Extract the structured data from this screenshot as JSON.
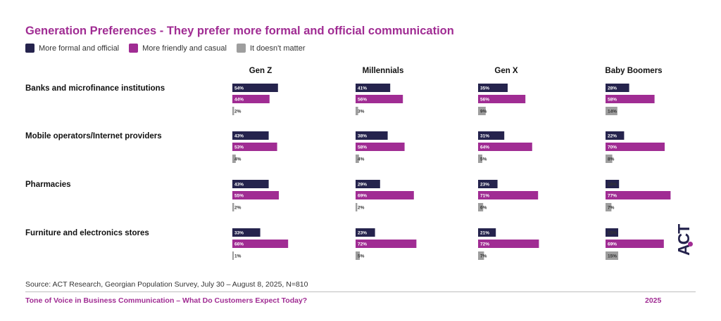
{
  "colors": {
    "formal": "#25234d",
    "friendly": "#a02c93",
    "neutral": "#9e9e9e",
    "title": "#a02c93"
  },
  "title": "Generation Preferences - They prefer more formal and official communication",
  "legend": {
    "formal": "More formal and official",
    "friendly": "More friendly and casual",
    "neutral": "It doesn't matter"
  },
  "chart_data": {
    "type": "bar",
    "orientation": "horizontal",
    "unit": "%",
    "generations": [
      "Gen Z",
      "Millennials",
      "Gen X",
      "Baby Boomers"
    ],
    "series_names": [
      "More formal and official",
      "More friendly and casual",
      "It doesn't matter"
    ],
    "categories": [
      {
        "label": "Banks and microfinance institutions",
        "values": [
          [
            54,
            44,
            2
          ],
          [
            41,
            56,
            3
          ],
          [
            35,
            56,
            9
          ],
          [
            28,
            58,
            14
          ]
        ]
      },
      {
        "label": "Mobile operators/Internet providers",
        "values": [
          [
            43,
            53,
            4
          ],
          [
            38,
            58,
            4
          ],
          [
            31,
            64,
            5
          ],
          [
            22,
            70,
            8
          ]
        ]
      },
      {
        "label": "Pharmacies",
        "values": [
          [
            43,
            55,
            2
          ],
          [
            29,
            69,
            2
          ],
          [
            23,
            71,
            6
          ],
          [
            16,
            77,
            7
          ]
        ]
      },
      {
        "label": "Furniture and electronics stores",
        "values": [
          [
            33,
            66,
            1
          ],
          [
            23,
            72,
            5
          ],
          [
            21,
            72,
            7
          ],
          [
            15,
            69,
            15
          ]
        ]
      }
    ]
  },
  "source": "Source: ACT Research, Georgian Population Survey, July 30 – August 8, 2025, N=810",
  "footer": {
    "title": "Tone of Voice in Business Communication – What Do Customers Expect Today?",
    "year": "2025"
  },
  "logo": {
    "text": "ACT",
    "dot_color": "#a02c93"
  }
}
